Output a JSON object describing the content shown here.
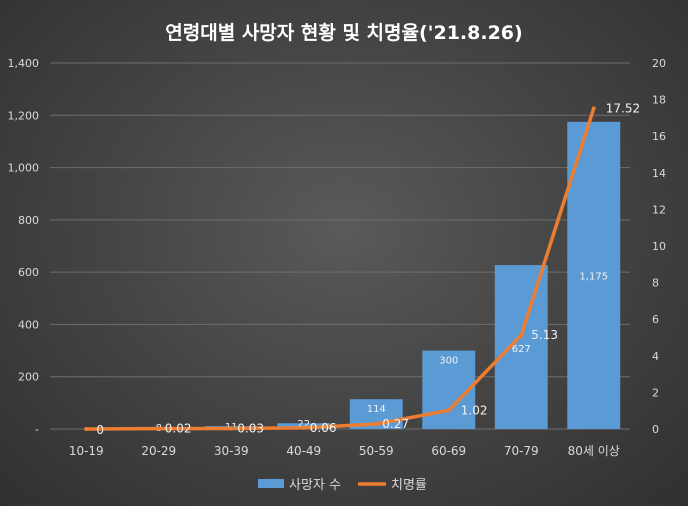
{
  "chart_data": {
    "type": "bar",
    "title": "연령대별 사망자 현황 및 치명율('21.8.26)",
    "categories": [
      "10-19",
      "20-29",
      "30-39",
      "40-49",
      "50-59",
      "60-69",
      "70-79",
      "80세 이상"
    ],
    "series": [
      {
        "name": "사망자 수",
        "type": "bar",
        "axis": "left",
        "values": [
          0,
          8,
          11,
          22,
          114,
          300,
          627,
          1175
        ],
        "labels": [
          "",
          "8",
          "11",
          "22",
          "114",
          "300",
          "627",
          "1,175"
        ]
      },
      {
        "name": "치명률",
        "type": "line",
        "axis": "right",
        "values": [
          0,
          0.02,
          0.03,
          0.06,
          0.27,
          1.02,
          5.13,
          17.52
        ],
        "labels": [
          "0",
          "0.02",
          "0.03",
          "0.06",
          "0.27",
          "1.02",
          "5.13",
          "17.52"
        ]
      }
    ],
    "y_left": {
      "range": [
        0,
        1400
      ],
      "ticks": [
        "-",
        "200",
        "400",
        "600",
        "800",
        "1,000",
        "1,200",
        "1,400"
      ]
    },
    "y_right": {
      "range": [
        0,
        20
      ],
      "ticks": [
        "0",
        "2",
        "4",
        "6",
        "8",
        "10",
        "12",
        "14",
        "16",
        "18",
        "20"
      ]
    },
    "grid": true,
    "legend": "bottom",
    "colors": {
      "bar": "#5b9bd5",
      "line": "#ed7d31",
      "grid": "#6e6e6e"
    }
  }
}
